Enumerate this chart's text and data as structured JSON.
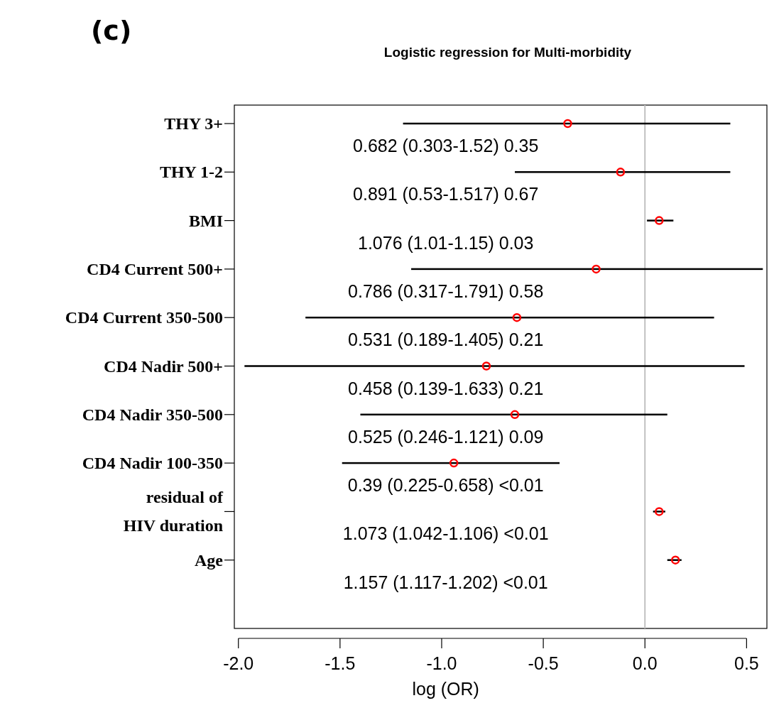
{
  "chart_data": {
    "type": "scatter",
    "orientation": "horizontal",
    "title": "Logistic regression for Multi-morbidity",
    "xlabel": "log (OR)",
    "categories": [
      "THY 3+",
      "THY 1-2",
      "BMI",
      "CD4 Current 500+",
      "CD4 Current 350-500",
      "CD4 Nadir 500+",
      "CD4 Nadir 350-500",
      "CD4 Nadir 100-350",
      "residual of HIV duration",
      "Age"
    ],
    "series": [
      {
        "color": "#ff0000",
        "values": [
          -0.38,
          -0.12,
          0.07,
          -0.24,
          -0.63,
          -0.78,
          -0.64,
          -0.94,
          0.07,
          0.15
        ],
        "errors": [
          [
            -1.19,
            0.42
          ],
          [
            -0.64,
            0.42
          ],
          [
            0.01,
            0.14
          ],
          [
            -1.15,
            0.58
          ],
          [
            -1.67,
            0.34
          ],
          [
            -1.97,
            0.49
          ],
          [
            -1.4,
            0.11
          ],
          [
            -1.49,
            -0.42
          ],
          [
            0.04,
            0.1
          ],
          [
            0.11,
            0.18
          ]
        ]
      }
    ],
    "xlim": [
      -2.02,
      0.6
    ],
    "xticks": [
      {
        "value": -2,
        "label": "-2.0"
      },
      {
        "value": -1.5,
        "label": "-1.5"
      },
      {
        "value": -1,
        "label": "-1.0"
      },
      {
        "value": -0.5,
        "label": "-0.5"
      },
      {
        "value": 0,
        "label": "0.0"
      },
      {
        "value": 0.5,
        "label": "0.5"
      }
    ],
    "ref_lines": [
      {
        "axis": "x",
        "value": 0,
        "color": "#c0c0c0"
      }
    ],
    "marker": "circle",
    "annotations": [
      "(c)",
      "0.682 (0.303-1.52) 0.35",
      "0.891 (0.53-1.517) 0.67",
      "1.076 (1.01-1.15) 0.03",
      "0.786 (0.317-1.791) 0.58",
      "0.531 (0.189-1.405) 0.21",
      "0.458 (0.139-1.633) 0.21",
      "0.525 (0.246-1.121) 0.09",
      "0.39 (0.225-0.658) <0.01",
      "1.073 (1.042-1.106) <0.01",
      "1.157 (1.117-1.202) <0.01"
    ]
  }
}
